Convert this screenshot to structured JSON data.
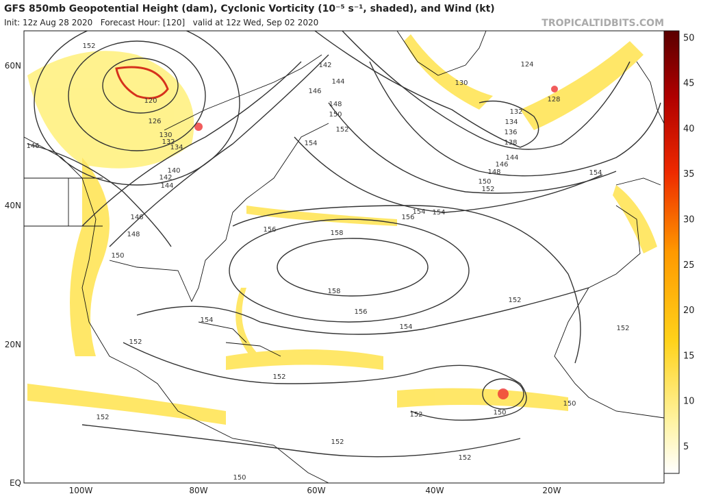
{
  "header": {
    "title": "GFS 850mb Geopotential Height (dam), Cyclonic Vorticity (10⁻⁵ s⁻¹, shaded), and Wind (kt)",
    "subtitle": "Init: 12z Aug 28 2020   Forecast Hour: [120]   valid at 12z Wed, Sep 02 2020",
    "site": "TROPICALTIDBITS.COM"
  },
  "latitude_labels": [
    "60N",
    "40N",
    "20N",
    "EQ"
  ],
  "longitude_labels": [
    "100W",
    "80W",
    "60W",
    "40W",
    "20W"
  ],
  "colorbar": {
    "ticks": [
      "5",
      "10",
      "15",
      "20",
      "25",
      "30",
      "35",
      "40",
      "45",
      "50"
    ]
  },
  "contour_labels": [
    "120",
    "126",
    "130",
    "132",
    "134",
    "140",
    "142",
    "144",
    "146",
    "146",
    "148",
    "150",
    "152",
    "154",
    "142",
    "144",
    "146",
    "148",
    "150",
    "152",
    "154",
    "156",
    "158",
    "158",
    "156",
    "154",
    "152",
    "154",
    "156",
    "124",
    "130",
    "132",
    "134",
    "136",
    "138",
    "144",
    "146",
    "148",
    "150",
    "152",
    "154",
    "154",
    "128",
    "152",
    "152",
    "152",
    "152",
    "150",
    "150",
    "152",
    "152",
    "150",
    "152"
  ]
}
